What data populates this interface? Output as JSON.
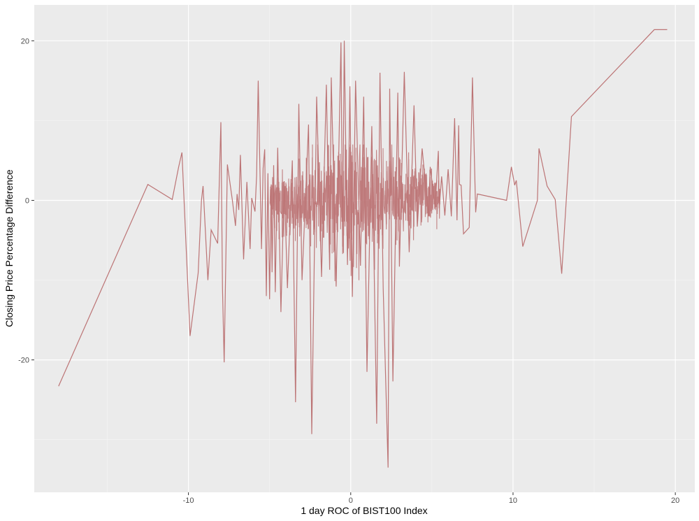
{
  "chart_data": {
    "type": "line",
    "title": "",
    "xlabel": "1 day ROC of BIST100 Index",
    "ylabel": "Closing Price Percentage Difference",
    "xlim": [
      -19.5,
      21.2
    ],
    "ylim": [
      -36.6,
      24.5
    ],
    "x_ticks": [
      -10,
      0,
      10,
      20
    ],
    "x_tick_labels": [
      "-10",
      "0",
      "10",
      "20"
    ],
    "y_ticks": [
      -20,
      0,
      20
    ],
    "y_tick_labels": [
      "-20",
      "0",
      "20"
    ],
    "grid": true,
    "legend": "none",
    "colors": {
      "panel": "#EBEBEB",
      "grid_major": "#FFFFFF",
      "grid_minor": "#F5F5F5",
      "line": "#BC7475",
      "tick_text": "#4D4D4D",
      "tick_mark": "#333333"
    },
    "noise_band": {
      "x_range": [
        -5,
        5.5
      ],
      "y_range": [
        -13,
        7
      ],
      "count": 1100,
      "seed": 7
    },
    "series": [
      {
        "x": [
          -18.0,
          -12.5,
          -11.0,
          -10.6,
          -10.4,
          -9.9,
          -9.4,
          -9.2,
          -9.1,
          -9.0,
          -8.8,
          -8.6,
          -8.2,
          -8.0,
          -7.9,
          -7.8,
          -7.6,
          -7.3,
          -7.1,
          -7.0,
          -6.9,
          -6.8,
          -6.6,
          -6.4,
          -6.2,
          -6.1,
          -5.9,
          -5.8,
          -5.7,
          -5.5,
          -5.4,
          -5.3,
          -5.2,
          -5.1,
          -5.0,
          -4.9,
          -4.85,
          -4.75,
          -4.65,
          -4.5,
          -4.3,
          -4.1,
          -3.9,
          -3.6,
          -3.4,
          -3.2,
          -3.0,
          -2.6,
          -2.4,
          -2.1,
          -1.8,
          -1.5,
          -1.3,
          -1.2,
          -0.9,
          -0.6,
          -0.5,
          -0.4,
          -0.2,
          -0.05,
          0.1,
          0.3,
          0.6,
          0.8,
          1.0,
          1.3,
          1.6,
          1.8,
          2.0,
          2.3,
          2.4,
          2.6,
          2.9,
          3.0,
          3.3,
          3.6,
          3.9,
          4.1,
          4.4,
          4.8,
          4.9,
          5.2,
          5.4,
          5.45,
          5.6,
          5.8,
          6.0,
          6.2,
          6.4,
          6.55,
          6.65,
          6.7,
          6.8,
          6.95,
          7.3,
          7.5,
          7.7,
          7.8,
          9.6,
          9.9,
          10.1,
          10.2,
          10.6,
          11.5,
          11.6,
          12.1,
          12.6,
          13.0,
          13.6,
          18.7,
          19.5
        ],
        "y": [
          -23.3,
          2.0,
          0.1,
          4.2,
          6.0,
          -17.0,
          -9.1,
          0.0,
          1.8,
          -2.1,
          -10.0,
          -3.7,
          -5.4,
          9.8,
          -11.0,
          -20.3,
          4.5,
          0.1,
          -3.2,
          0.8,
          -1.2,
          5.7,
          -7.4,
          2.3,
          -6.1,
          0.3,
          -1.4,
          3.1,
          15.0,
          -6.1,
          4.0,
          6.4,
          -12.0,
          3.4,
          -12.4,
          2.0,
          -9.0,
          4.4,
          -11.5,
          6.6,
          -14.0,
          2.4,
          -11.0,
          5.0,
          -25.3,
          12.1,
          -10.0,
          9.5,
          -29.3,
          13.0,
          -9.6,
          14.5,
          -8.7,
          15.4,
          -10.8,
          19.8,
          -5.8,
          20.0,
          -8.1,
          14.3,
          -12.1,
          15.0,
          -8.2,
          13.0,
          -21.5,
          9.3,
          -28.0,
          16.0,
          -11.0,
          -33.5,
          14.0,
          -22.7,
          13.5,
          -8.3,
          16.1,
          -6.5,
          11.9,
          -3.3,
          6.5,
          -2.0,
          4.2,
          -0.9,
          6.2,
          -1.0,
          3.0,
          -1.9,
          3.9,
          -2.0,
          10.3,
          -2.5,
          9.4,
          2.0,
          1.9,
          -4.2,
          -3.4,
          15.4,
          -1.5,
          0.8,
          0.0,
          4.2,
          1.9,
          2.5,
          -5.8,
          0.0,
          6.5,
          1.8,
          0.1,
          -9.2,
          10.5,
          21.4,
          21.4
        ]
      }
    ]
  }
}
